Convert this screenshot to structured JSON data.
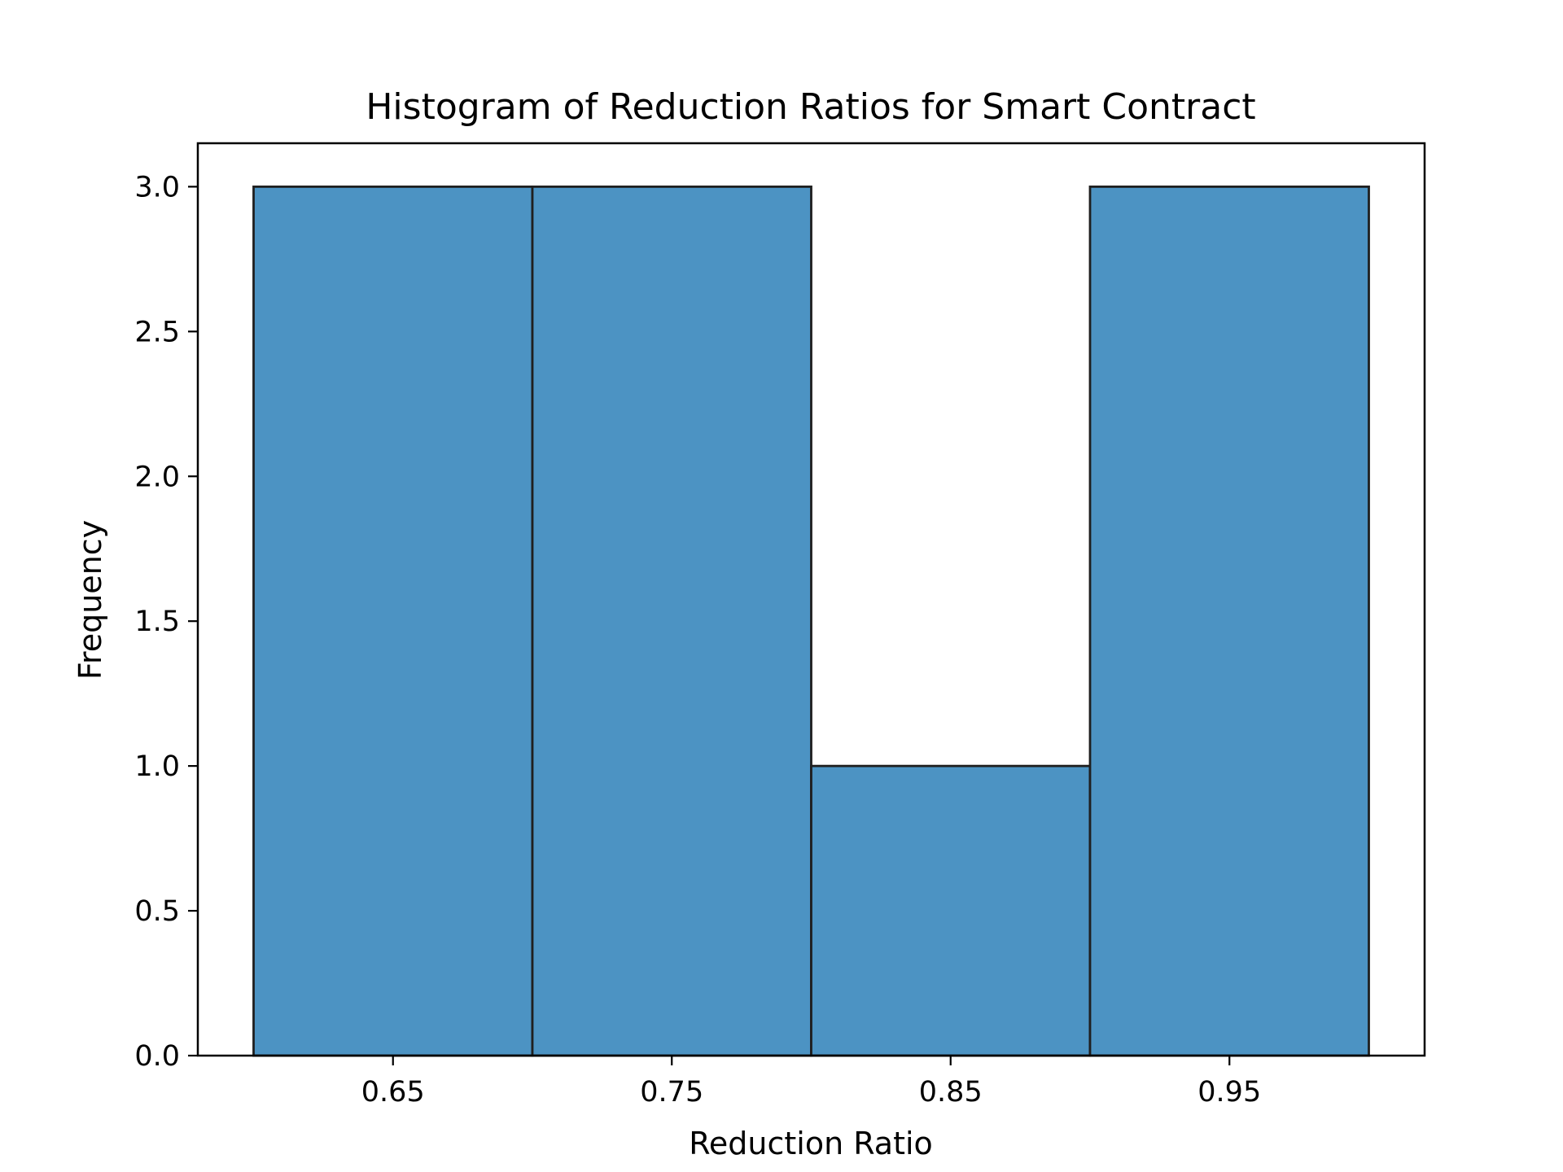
{
  "chart_data": {
    "type": "bar",
    "subtype": "histogram",
    "title": "Histogram of Reduction Ratios for Smart Contract",
    "xlabel": "Reduction Ratio",
    "ylabel": "Frequency",
    "bins": [
      {
        "start": 0.6,
        "end": 0.7,
        "count": 3
      },
      {
        "start": 0.7,
        "end": 0.8,
        "count": 3
      },
      {
        "start": 0.8,
        "end": 0.9,
        "count": 1
      },
      {
        "start": 0.9,
        "end": 1.0,
        "count": 3
      }
    ],
    "xticks": [
      0.65,
      0.75,
      0.85,
      0.95
    ],
    "xtick_labels": [
      "0.65",
      "0.75",
      "0.85",
      "0.95"
    ],
    "yticks": [
      0.0,
      0.5,
      1.0,
      1.5,
      2.0,
      2.5,
      3.0
    ],
    "ytick_labels": [
      "0.0",
      "0.5",
      "1.0",
      "1.5",
      "2.0",
      "2.5",
      "3.0"
    ],
    "xlim": [
      0.58,
      1.02
    ],
    "ylim": [
      0,
      3.15
    ],
    "grid": false,
    "legend": "none",
    "bar_color": "#4c93c3",
    "edge_color": "#1f1f1f"
  }
}
